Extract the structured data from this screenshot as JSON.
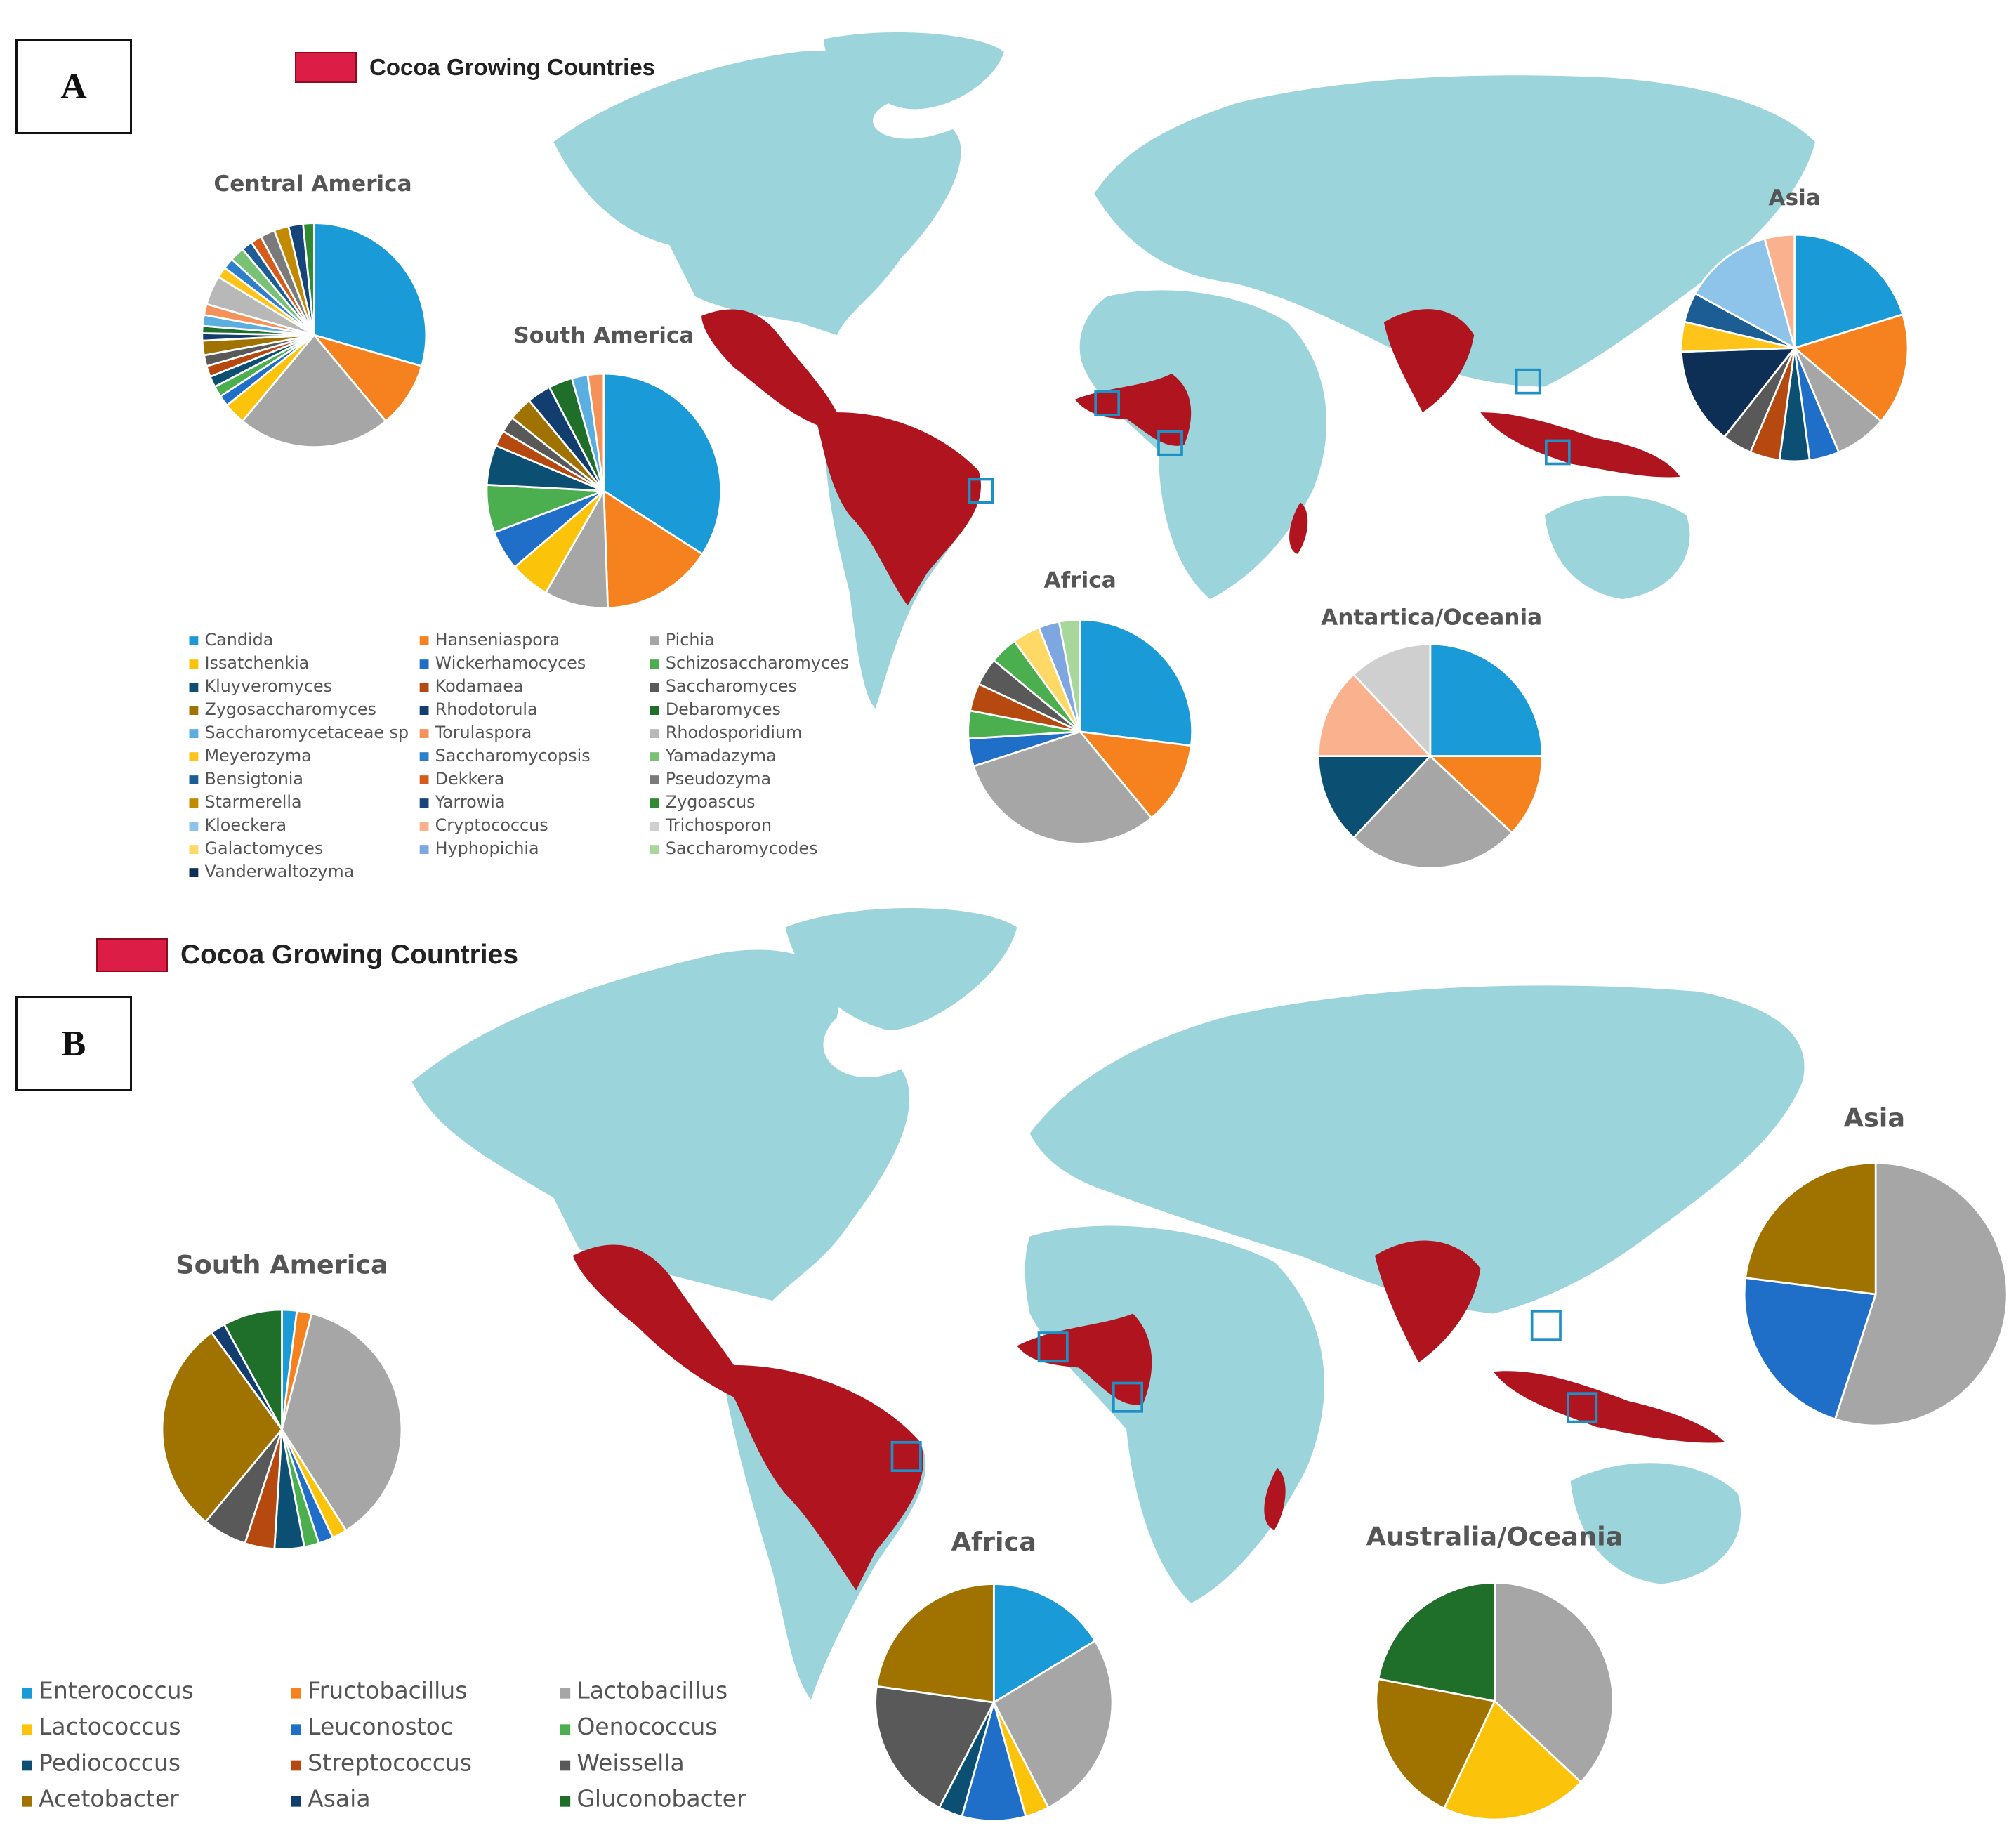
{
  "panels": {
    "a": {
      "label": "A",
      "cocoa_legend": "Cocoa Growing Countries",
      "legend": [
        "Candida",
        "Hanseniaspora",
        "Pichia",
        "Issatchenkia",
        "Wickerhamocyces",
        "Schizosaccharomyces",
        "Kluyveromyces",
        "Kodamaea",
        "Saccharomyces",
        "Zygosaccharomyces",
        "Rhodotorula",
        "Debaromyces",
        "Saccharomycetaceae sp",
        "Torulaspora",
        "Rhodosporidium",
        "Meyerozyma",
        "Saccharomycopsis",
        "Yamadazyma",
        "Bensigtonia",
        "Dekkera",
        "Pseudozyma",
        "Starmerella",
        "Yarrowia",
        "Zygoascus",
        "Kloeckera",
        "Cryptococcus",
        "Trichosporon",
        "Galactomyces",
        "Hyphopichia",
        "Saccharomycodes",
        "Vanderwaltozyma"
      ]
    },
    "b": {
      "label": "B",
      "cocoa_legend": "Cocoa Growing Countries",
      "legend": [
        "Enterococcus",
        "Fructobacillus",
        "Lactobacillus",
        "Lactococcus",
        "Leuconostoc",
        "Oenococcus",
        "Pediococcus",
        "Streptococcus",
        "Weissella",
        "Acetobacter",
        "Asaia",
        "Gluconobacter"
      ]
    }
  },
  "colors": {
    "map": "#9cd4dc",
    "cocoa": "#b0141e",
    "marker": "#1e90c8",
    "a_palette": [
      "#1a9ad7",
      "#f5821f",
      "#a6a6a6",
      "#fbc30a",
      "#1f6ec7",
      "#4caf4f",
      "#0b4f72",
      "#b5490f",
      "#595959",
      "#a07200",
      "#113e6e",
      "#1f6e2a",
      "#5aaee0",
      "#f4925a",
      "#b8b8b8",
      "#ffc41a",
      "#2d7fcc",
      "#79c175",
      "#1c5d93",
      "#d65c1a",
      "#7a7a7a",
      "#c28a00",
      "#14447a",
      "#2f8a30",
      "#8fc4ea",
      "#f9b18e",
      "#cfcfcf",
      "#ffd966",
      "#7ea6e0",
      "#a8d79c",
      "#0d2f56"
    ],
    "b_palette": [
      "#1a9ad7",
      "#f5821f",
      "#a6a6a6",
      "#fbc30a",
      "#1f6ec7",
      "#4caf4f",
      "#0b4f72",
      "#b5490f",
      "#595959",
      "#a07200",
      "#113e6e",
      "#1f6e2a"
    ]
  },
  "chart_data": [
    {
      "type": "pie",
      "panel": "A",
      "title": "Central America",
      "labels": [
        "Candida",
        "Hanseniaspora",
        "Pichia",
        "Issatchenkia",
        "Wickerhamocyces",
        "Schizosaccharomyces",
        "Kluyveromyces",
        "Kodamaea",
        "Saccharomyces",
        "Zygosaccharomyces",
        "Rhodotorula",
        "Debaromyces",
        "Saccharomycetaceae sp",
        "Torulaspora",
        "Rhodosporidium",
        "Meyerozyma",
        "Saccharomycopsis",
        "Yamadazyma",
        "Bensigtonia",
        "Dekkera",
        "Pseudozyma",
        "Starmerella",
        "Yarrowia",
        "Zygoascus"
      ],
      "values": [
        28,
        9,
        21,
        3,
        1.5,
        1.5,
        1.5,
        1.5,
        1.5,
        2,
        1,
        1,
        1.5,
        1.5,
        4,
        1.5,
        1.5,
        2,
        1.5,
        1.5,
        2,
        2,
        2,
        1.5
      ]
    },
    {
      "type": "pie",
      "panel": "A",
      "title": "South America",
      "labels": [
        "Candida",
        "Hanseniaspora",
        "Pichia",
        "Issatchenkia",
        "Wickerhamocyces",
        "Schizosaccharomyces",
        "Kluyveromyces",
        "Kodamaea",
        "Saccharomyces",
        "Zygosaccharomyces",
        "Rhodotorula",
        "Debaromyces",
        "Saccharomycetaceae sp",
        "Torulaspora"
      ],
      "values": [
        31,
        14,
        8,
        5,
        5,
        6,
        5,
        2,
        2,
        3,
        3,
        3,
        2,
        2
      ]
    },
    {
      "type": "pie",
      "panel": "A",
      "title": "Asia",
      "labels": [
        "Candida",
        "Hanseniaspora",
        "Pichia",
        "Wickerhamocyces",
        "Kluyveromyces",
        "Kodamaea",
        "Saccharomyces",
        "Vanderwaltozyma",
        "Meyerozyma",
        "Bensigtonia",
        "Kloeckera",
        "Cryptococcus"
      ],
      "values": [
        19,
        15,
        7,
        4,
        4,
        4,
        4,
        13,
        4,
        4,
        12,
        4
      ]
    },
    {
      "type": "pie",
      "panel": "A",
      "title": "Africa",
      "labels": [
        "Candida",
        "Hanseniaspora",
        "Pichia",
        "Wickerhamocyces",
        "Schizosaccharomyces",
        "Kodamaea",
        "Saccharomyces",
        "Schizosaccharomyces",
        "Galactomyces",
        "Hyphopichia",
        "Saccharomycodes"
      ],
      "values": [
        27,
        12,
        31,
        4,
        4,
        4,
        4,
        4,
        4,
        3,
        3
      ]
    },
    {
      "type": "pie",
      "panel": "A",
      "title": "Antartica/Oceania",
      "labels": [
        "Candida",
        "Hanseniaspora",
        "Pichia",
        "Kluyveromyces",
        "Cryptococcus",
        "Trichosporon"
      ],
      "values": [
        25,
        12,
        25,
        13,
        13,
        12
      ]
    },
    {
      "type": "pie",
      "panel": "B",
      "title": "South America",
      "labels": [
        "Enterococcus",
        "Fructobacillus",
        "Lactobacillus",
        "Lactococcus",
        "Leuconostoc",
        "Oenococcus",
        "Pediococcus",
        "Streptococcus",
        "Weissella",
        "Acetobacter",
        "Asaia",
        "Gluconobacter"
      ],
      "values": [
        2,
        2,
        37,
        2,
        2,
        2,
        4,
        4,
        6,
        29,
        2,
        8
      ]
    },
    {
      "type": "pie",
      "panel": "B",
      "title": "Asia",
      "labels": [
        "Lactobacillus",
        "Leuconostoc",
        "Acetobacter"
      ],
      "values": [
        55,
        22,
        23
      ]
    },
    {
      "type": "pie",
      "panel": "B",
      "title": "Africa",
      "labels": [
        "Enterococcus",
        "Lactobacillus",
        "Lactococcus",
        "Leuconostoc",
        "Pediococcus",
        "Weissella",
        "Acetobacter"
      ],
      "values": [
        15,
        24,
        3,
        8,
        3,
        18,
        21
      ]
    },
    {
      "type": "pie",
      "panel": "B",
      "title": "Australia/Oceania",
      "labels": [
        "Lactobacillus",
        "Lactococcus",
        "Acetobacter",
        "Gluconobacter"
      ],
      "values": [
        37,
        20,
        21,
        22
      ]
    }
  ]
}
